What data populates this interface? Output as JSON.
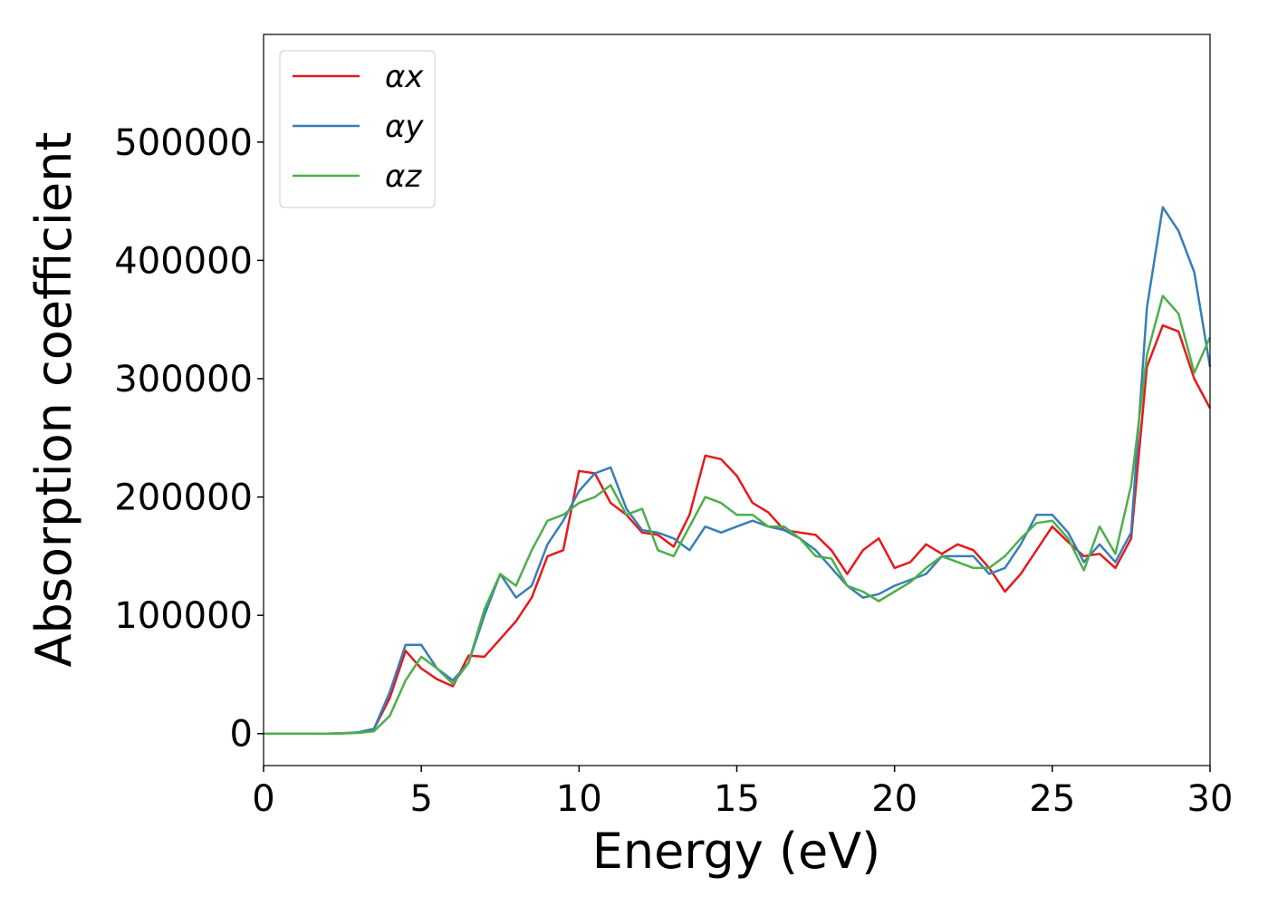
{
  "chart_data": {
    "type": "line",
    "xlabel": "Energy (eV)",
    "ylabel": "Absorption coefficient",
    "x": [
      0,
      0.5,
      1,
      1.5,
      2,
      2.5,
      3,
      3.5,
      4,
      4.5,
      5,
      5.5,
      6,
      6.5,
      7,
      7.5,
      8,
      8.5,
      9,
      9.5,
      10,
      10.5,
      11,
      11.5,
      12,
      12.5,
      13,
      13.5,
      14,
      14.5,
      15,
      15.5,
      16,
      16.5,
      17,
      17.5,
      18,
      18.5,
      19,
      19.5,
      20,
      20.5,
      21,
      21.5,
      22,
      22.5,
      23,
      23.5,
      24,
      24.5,
      25,
      25.5,
      26,
      26.5,
      27,
      27.5,
      28,
      28.5,
      29,
      29.5,
      30
    ],
    "series": [
      {
        "name": "αx",
        "color": "#e41a1c",
        "values": [
          0,
          0,
          0,
          0,
          0,
          300,
          1000,
          4000,
          30000,
          70000,
          55000,
          46000,
          40000,
          66000,
          65000,
          80000,
          95000,
          115000,
          150000,
          155000,
          222000,
          220000,
          195000,
          185000,
          170000,
          168000,
          158000,
          185000,
          235000,
          232000,
          218000,
          195000,
          187000,
          172000,
          170000,
          168000,
          155000,
          135000,
          155000,
          165000,
          140000,
          145000,
          160000,
          152000,
          160000,
          155000,
          140000,
          120000,
          135000,
          155000,
          175000,
          162000,
          150000,
          152000,
          140000,
          165000,
          310000,
          345000,
          340000,
          300000,
          275000
        ]
      },
      {
        "name": "αy",
        "color": "#377eb8",
        "values": [
          0,
          0,
          0,
          0,
          0,
          300,
          1000,
          4000,
          35000,
          75000,
          75000,
          55000,
          45000,
          60000,
          100000,
          135000,
          115000,
          125000,
          160000,
          180000,
          205000,
          220000,
          225000,
          190000,
          172000,
          170000,
          165000,
          155000,
          175000,
          170000,
          175000,
          180000,
          175000,
          172000,
          165000,
          155000,
          140000,
          125000,
          115000,
          118000,
          125000,
          130000,
          135000,
          150000,
          150000,
          150000,
          135000,
          140000,
          160000,
          185000,
          185000,
          170000,
          145000,
          160000,
          145000,
          170000,
          360000,
          445000,
          425000,
          390000,
          310000
        ]
      },
      {
        "name": "αz",
        "color": "#4daf4a",
        "values": [
          0,
          0,
          0,
          0,
          0,
          200,
          600,
          2000,
          15000,
          45000,
          65000,
          55000,
          42000,
          60000,
          105000,
          135000,
          125000,
          155000,
          180000,
          185000,
          195000,
          200000,
          210000,
          185000,
          190000,
          155000,
          150000,
          175000,
          200000,
          195000,
          185000,
          185000,
          175000,
          175000,
          165000,
          150000,
          148000,
          125000,
          120000,
          112000,
          120000,
          128000,
          140000,
          150000,
          145000,
          140000,
          140000,
          150000,
          165000,
          178000,
          180000,
          165000,
          138000,
          175000,
          152000,
          210000,
          320000,
          370000,
          355000,
          305000,
          335000
        ]
      }
    ],
    "xlim": [
      0,
      30
    ],
    "xticks": [
      0,
      5,
      10,
      15,
      20,
      25,
      30
    ],
    "ylim": [
      -27000,
      591000
    ],
    "yticks": [
      0,
      100000,
      200000,
      300000,
      400000,
      500000
    ],
    "legend": "upper left"
  }
}
